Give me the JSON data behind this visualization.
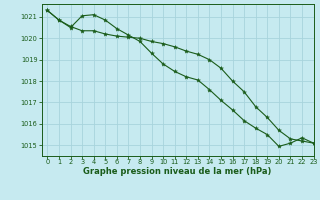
{
  "title": "Graphe pression niveau de la mer (hPa)",
  "background_color": "#c6eaf0",
  "grid_color": "#a8d4dc",
  "line_color": "#1a5c1a",
  "marker_color": "#1a5c1a",
  "tick_color": "#1a5c1a",
  "xlim": [
    -0.5,
    23
  ],
  "ylim": [
    1014.5,
    1021.6
  ],
  "yticks": [
    1015,
    1016,
    1017,
    1018,
    1019,
    1020,
    1021
  ],
  "xticks": [
    0,
    1,
    2,
    3,
    4,
    5,
    6,
    7,
    8,
    9,
    10,
    11,
    12,
    13,
    14,
    15,
    16,
    17,
    18,
    19,
    20,
    21,
    22,
    23
  ],
  "series1_x": [
    0,
    1,
    2,
    3,
    4,
    5,
    6,
    7,
    8,
    9,
    10,
    11,
    12,
    13,
    14,
    15,
    16,
    17,
    18,
    19,
    20,
    21,
    22,
    23
  ],
  "series1_y": [
    1021.3,
    1020.85,
    1020.55,
    1020.35,
    1020.35,
    1020.2,
    1020.1,
    1020.05,
    1020.0,
    1019.85,
    1019.75,
    1019.6,
    1019.4,
    1019.25,
    1019.0,
    1018.6,
    1018.0,
    1017.5,
    1016.8,
    1016.3,
    1015.7,
    1015.3,
    1015.2,
    1015.1
  ],
  "series2_x": [
    0,
    1,
    2,
    3,
    4,
    5,
    6,
    7,
    8,
    9,
    10,
    11,
    12,
    13,
    14,
    15,
    16,
    17,
    18,
    19,
    20,
    21,
    22,
    23
  ],
  "series2_y": [
    1021.3,
    1020.85,
    1020.5,
    1021.05,
    1021.1,
    1020.85,
    1020.45,
    1020.15,
    1019.85,
    1019.3,
    1018.8,
    1018.45,
    1018.2,
    1018.05,
    1017.6,
    1017.1,
    1016.65,
    1016.15,
    1015.8,
    1015.5,
    1014.95,
    1015.1,
    1015.35,
    1015.1
  ]
}
